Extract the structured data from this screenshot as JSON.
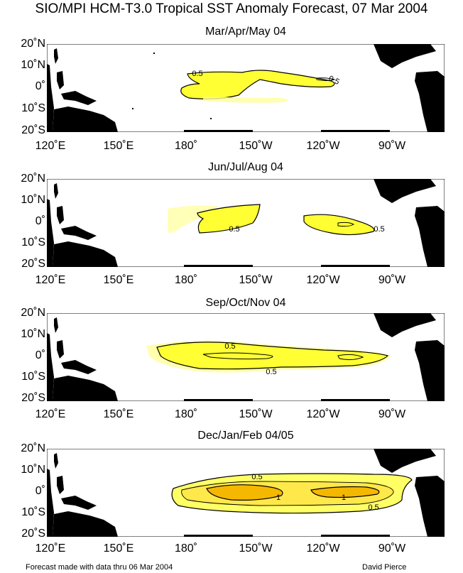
{
  "title": "SIO/MPI HCM-T3.0 Tropical SST Anomaly Forecast, 07 Mar 2004",
  "lat_labels": [
    "20˚N",
    "10˚N",
    "0˚",
    "10˚S",
    "20˚S"
  ],
  "lon_labels": [
    "120˚E",
    "150˚E",
    "180˚",
    "150˚W",
    "120˚W",
    "90˚W"
  ],
  "panels": [
    {
      "title": "Mar/Apr/May 04",
      "contour_labels": [
        "0.5",
        "0.5"
      ]
    },
    {
      "title": "Jun/Jul/Aug 04",
      "contour_labels": [
        "0.5",
        "0.5"
      ]
    },
    {
      "title": "Sep/Oct/Nov 04",
      "contour_labels": [
        "0.5",
        "0.5"
      ]
    },
    {
      "title": "Dec/Jan/Feb 04/05",
      "contour_labels": [
        "0.5",
        "1",
        "1",
        "0.5"
      ]
    }
  ],
  "footer": {
    "left": "Forecast made with data thru 06 Mar 2004",
    "right": "David Pierce"
  },
  "colors": {
    "anomaly_fill": "#ffff33",
    "anomaly_strong": "#f5b800",
    "land": "#000000"
  }
}
